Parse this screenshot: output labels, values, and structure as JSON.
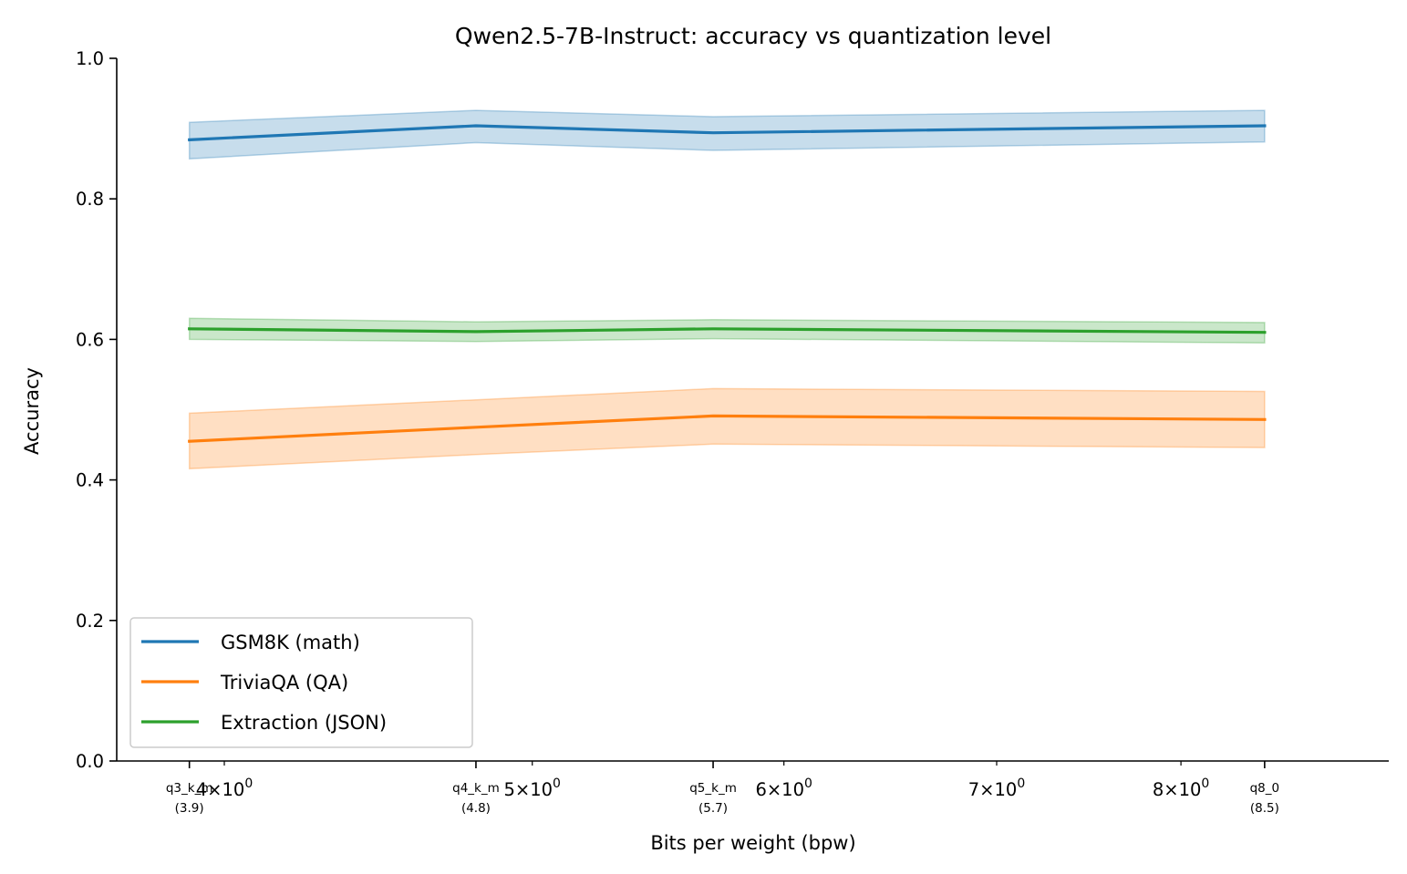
{
  "chart_data": {
    "type": "line",
    "title": "Qwen2.5-7B-Instruct: accuracy vs quantization level",
    "xlabel": "Bits per weight (bpw)",
    "ylabel": "Accuracy",
    "xscale": "log",
    "xlim": [
      3.7,
      9.3
    ],
    "ylim": [
      0.0,
      1.0
    ],
    "yticks": [
      "0.0",
      "0.2",
      "0.4",
      "0.6",
      "0.8",
      "1.0"
    ],
    "ytick_values": [
      0.0,
      0.2,
      0.4,
      0.6,
      0.8,
      1.0
    ],
    "log_ticks": [
      {
        "value": 4,
        "mantissa": "4",
        "exp": "0"
      },
      {
        "value": 5,
        "mantissa": "5",
        "exp": "0"
      },
      {
        "value": 6,
        "mantissa": "6",
        "exp": "0"
      },
      {
        "value": 7,
        "mantissa": "7",
        "exp": "0"
      },
      {
        "value": 8,
        "mantissa": "8",
        "exp": "0"
      }
    ],
    "x": [
      3.9,
      4.8,
      5.7,
      8.5
    ],
    "categories": [
      {
        "name": "q3_k_m",
        "bpw": "(3.9)"
      },
      {
        "name": "q4_k_m",
        "bpw": "(4.8)"
      },
      {
        "name": "q5_k_m",
        "bpw": "(5.7)"
      },
      {
        "name": "q8_0",
        "bpw": "(8.5)"
      }
    ],
    "times_sign": "×",
    "grid": false,
    "legend_position": "lower-left",
    "series": [
      {
        "name": "GSM8K (math)",
        "color": "#1f77b4",
        "values": [
          0.884,
          0.904,
          0.894,
          0.904
        ],
        "lower": [
          0.857,
          0.88,
          0.869,
          0.881
        ],
        "upper": [
          0.909,
          0.926,
          0.917,
          0.926
        ]
      },
      {
        "name": "TriviaQA (QA)",
        "color": "#ff7f0e",
        "values": [
          0.455,
          0.475,
          0.491,
          0.486
        ],
        "lower": [
          0.416,
          0.436,
          0.451,
          0.446
        ],
        "upper": [
          0.495,
          0.514,
          0.53,
          0.526
        ]
      },
      {
        "name": "Extraction (JSON)",
        "color": "#2ca02c",
        "values": [
          0.615,
          0.611,
          0.615,
          0.61
        ],
        "lower": [
          0.6,
          0.597,
          0.601,
          0.595
        ],
        "upper": [
          0.63,
          0.625,
          0.628,
          0.624
        ]
      }
    ]
  }
}
